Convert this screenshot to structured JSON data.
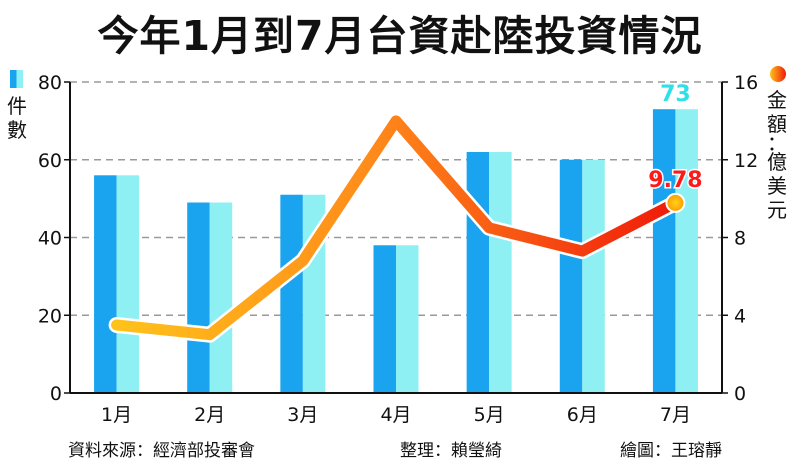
{
  "title": "今年1月到7月台資赴陸投資情況",
  "left_axis_label": "件數",
  "right_axis_label": "金額：億美元",
  "footer": {
    "source": "資料來源：經濟部投審會",
    "editor": "整理：賴瑩綺",
    "illustrator": "繪圖：王瑢靜"
  },
  "colors": {
    "bar_dark": "#1aa3ee",
    "bar_light": "#8ff0f4",
    "line_start": "#ffc21a",
    "line_mid": "#ff8c1a",
    "line_end": "#f01a0a",
    "bar_label": "#2ee0e8",
    "line_label": "#ff1a1a"
  },
  "chart_data": {
    "type": "bar",
    "categories": [
      "1月",
      "2月",
      "3月",
      "4月",
      "5月",
      "6月",
      "7月"
    ],
    "series": [
      {
        "name": "件數",
        "type": "bar",
        "axis": "left",
        "values": [
          56,
          49,
          51,
          38,
          62,
          60,
          73
        ]
      },
      {
        "name": "金額",
        "type": "line",
        "axis": "right",
        "values": [
          3.5,
          3.0,
          6.8,
          14.0,
          8.5,
          7.3,
          9.78
        ]
      }
    ],
    "y_left": {
      "min": 0,
      "max": 80,
      "ticks": [
        0,
        20,
        40,
        60,
        80
      ]
    },
    "y_right": {
      "min": 0,
      "max": 16,
      "ticks": [
        0,
        4,
        8,
        12,
        16
      ]
    },
    "data_labels": [
      {
        "series": 0,
        "index": 6,
        "text": "73"
      },
      {
        "series": 1,
        "index": 6,
        "text": "9.78"
      }
    ],
    "grid": true
  }
}
